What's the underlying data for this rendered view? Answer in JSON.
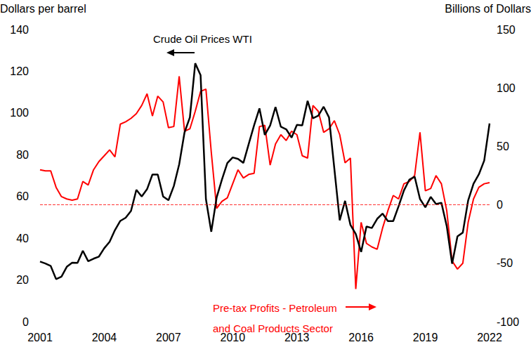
{
  "chart_data": {
    "type": "line",
    "ylabel": "Dollars per barrel",
    "y2label": "Billions of Dollars",
    "x": [
      2001,
      2001.25,
      2001.5,
      2001.75,
      2002,
      2002.25,
      2002.5,
      2002.75,
      2003,
      2003.25,
      2003.5,
      2003.75,
      2004,
      2004.25,
      2004.5,
      2004.75,
      2005,
      2005.25,
      2005.5,
      2005.75,
      2006,
      2006.25,
      2006.5,
      2006.75,
      2007,
      2007.25,
      2007.5,
      2007.75,
      2008,
      2008.25,
      2008.5,
      2008.75,
      2009,
      2009.25,
      2009.5,
      2009.75,
      2010,
      2010.25,
      2010.5,
      2010.75,
      2011,
      2011.25,
      2011.5,
      2011.75,
      2012,
      2012.25,
      2012.5,
      2012.75,
      2013,
      2013.25,
      2013.5,
      2013.75,
      2014,
      2014.25,
      2014.5,
      2014.75,
      2015,
      2015.25,
      2015.5,
      2015.75,
      2016,
      2016.25,
      2016.5,
      2016.75,
      2017,
      2017.25,
      2017.5,
      2017.75,
      2018,
      2018.25,
      2018.5,
      2018.75,
      2019,
      2019.25,
      2019.5,
      2019.75,
      2020,
      2020.25,
      2020.5,
      2020.75,
      2021,
      2021.25,
      2021.5,
      2021.75,
      2022
    ],
    "xlim": [
      2001,
      2022
    ],
    "xticks": [
      2001,
      2004,
      2007,
      2010,
      2013,
      2016,
      2019,
      2022
    ],
    "ylim": [
      0,
      140
    ],
    "yticks": [
      0,
      20,
      40,
      60,
      80,
      100,
      120,
      140
    ],
    "y2lim": [
      -100,
      150
    ],
    "y2ticks": [
      -100,
      -50,
      0,
      50,
      100,
      150
    ],
    "y2_reference_line": 0,
    "grid": false,
    "series": [
      {
        "name": "Crude Oil Prices WTI",
        "color": "#000000",
        "axis": "y",
        "values": [
          28.8,
          27.9,
          26.7,
          20.4,
          21.6,
          26.3,
          28.3,
          28.2,
          34.0,
          29.0,
          30.2,
          31.2,
          35.2,
          38.3,
          43.9,
          48.3,
          49.8,
          53.1,
          63.2,
          60.0,
          63.5,
          70.5,
          70.5,
          60.0,
          58.2,
          65.0,
          75.4,
          90.7,
          97.9,
          123.8,
          118.1,
          58.7,
          43.1,
          59.5,
          68.2,
          76.0,
          78.7,
          78.0,
          76.1,
          85.2,
          94.1,
          102.2,
          89.5,
          94.0,
          102.9,
          93.4,
          92.2,
          88.2,
          94.3,
          94.1,
          105.8,
          97.5,
          98.7,
          103.0,
          97.9,
          73.2,
          48.6,
          57.9,
          46.4,
          42.0,
          33.4,
          45.6,
          44.9,
          49.3,
          51.8,
          48.2,
          48.2,
          55.3,
          62.9,
          68.0,
          69.5,
          58.8,
          54.8,
          59.8,
          56.4,
          57.0,
          45.8,
          27.8,
          40.9,
          42.7,
          58.1,
          66.1,
          70.6,
          77.2,
          95.0
        ]
      },
      {
        "name": "Pre-tax Profits - Petroleum\nand Coal Products Sector",
        "color": "#ff0000",
        "axis": "y2",
        "values": [
          30,
          29,
          29,
          15,
          7,
          5,
          4,
          5,
          20,
          17,
          30,
          37,
          42,
          47,
          41,
          69,
          71,
          74,
          78,
          85,
          95,
          76,
          93,
          88,
          66,
          67,
          110,
          63,
          65,
          80,
          97,
          99,
          45,
          -3,
          3,
          6,
          18,
          30,
          23,
          26,
          27,
          67,
          68,
          34,
          52,
          60,
          55,
          63,
          60,
          42,
          40,
          85,
          80,
          62,
          65,
          72,
          60,
          36,
          40,
          -72,
          -15,
          -33,
          -36,
          -38,
          -20,
          -5,
          8,
          5,
          18,
          20,
          25,
          62,
          12,
          14,
          25,
          18,
          -5,
          -48,
          -55,
          -50,
          -15,
          5,
          15,
          18,
          19
        ]
      }
    ]
  }
}
